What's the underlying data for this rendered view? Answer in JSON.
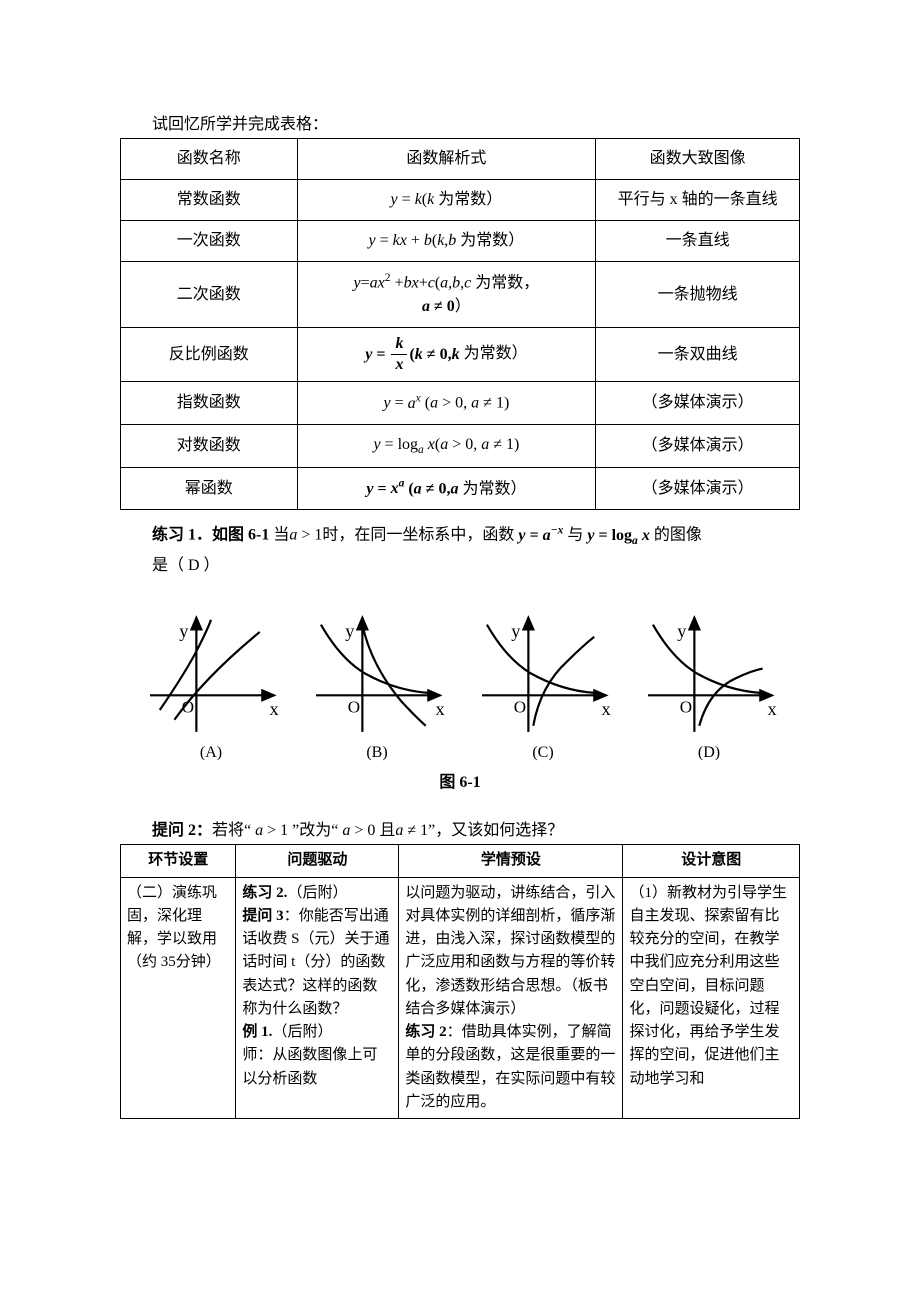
{
  "intro": "试回忆所学并完成表格：",
  "table1": {
    "headers": [
      "函数名称",
      "函数解析式",
      "函数大致图像"
    ],
    "rows": [
      {
        "name": "常数函数",
        "expr_html": "<span class='ital'>y</span> = <span class='ital'>k</span>(<span class='ital'>k</span> 为常数）",
        "img": "平行与 x 轴的一条直线"
      },
      {
        "name": "一次函数",
        "expr_html": "<span class='ital'>y</span> = <span class='ital'>kx</span> + <span class='ital'>b</span>(<span class='ital'>k</span>,<span class='ital'>b</span> 为常数）",
        "img": "一条直线"
      },
      {
        "name": "二次函数",
        "expr_html": "<span class='ital'>y</span>=<span class='ital'>ax</span><sup>2</sup> +<span class='ital'>bx</span>+<span class='ital'>c</span>(<span class='ital'>a</span>,<span class='ital'>b</span>,<span class='ital'>c</span> 为常数，<br><span class='bold'><span class='ital'>a</span> ≠ 0</span>）",
        "img": "一条抛物线"
      },
      {
        "name": "反比例函数",
        "expr_html": "<span class='bold'><span class='ital'>y</span> = <span class='frac'><span class='num'>k</span><span class='den'>x</span></span>(<span class='ital'>k</span> ≠ 0,<span class='ital'>k</span></span> 为常数）",
        "img": "一条双曲线"
      },
      {
        "name": "指数函数",
        "expr_html": "<span class='ital'>y</span> = <span class='ital'>a<sup>x</sup></span> (<span class='ital'>a</span> &gt; 0, <span class='ital'>a</span> ≠ 1)",
        "img": "（多媒体演示）"
      },
      {
        "name": "对数函数",
        "expr_html": "<span class='ital'>y</span> = log<sub><span class='ital'>a</span></sub> <span class='ital'>x</span>(<span class='ital'>a</span> &gt; 0, <span class='ital'>a</span> ≠ 1)",
        "img": "（多媒体演示）"
      },
      {
        "name": "幂函数",
        "expr_html": "<span class='bold'><span class='ital'>y</span> = <span class='ital'>x<sup>a</sup></span> (<span class='ital'>a</span> ≠ 0,<span class='ital'>a</span></span> 为常数）",
        "img": "（多媒体演示）"
      }
    ]
  },
  "ex1": {
    "label": "练习 1．如图 6-1",
    "text_html": "当<span class='ital'>a</span> &gt; 1时，在同一坐标系中，函数 <span class='bold ital'>y = a<sup>−x</sup></span> 与 <span class='bold'><span class='ital'>y</span> = log<sub><span class='ital'>a</span></sub> <span class='ital'>x</span></span> 的图像",
    "answer": "是（ D  ）"
  },
  "graphs": {
    "labels": [
      "(A)",
      "(B)",
      "(C)",
      "(D)"
    ],
    "axis_labels": {
      "x": "x",
      "y": "y",
      "origin": "O"
    },
    "title": "图 6-1",
    "stroke": "#000000",
    "stroke_width": 1.8,
    "curves": {
      "A": [
        "M 18 82 Q 40 50 50 30 Q 58 14 60 8",
        "M 30 90 Q 55 55 100 18"
      ],
      "B": [
        "M 14 12 Q 30 40 50 52 Q 75 66 102 68",
        "M 48 12 Q 55 45 80 75 Q 92 88 100 95"
      ],
      "C": [
        "M 14 12 Q 30 40 50 52 Q 75 66 102 68",
        "M 52 95 Q 58 62 80 42 Q 92 30 102 22"
      ],
      "D": [
        "M 14 12 Q 30 40 50 52 Q 75 66 102 68",
        "M 52 95 Q 60 66 82 56 Q 94 50 104 48"
      ]
    }
  },
  "q2_html": "<span class='bold'>提问 2：</span>若将“ <span class='ital'>a</span> &gt; 1 ”改为“ <span class='ital'>a</span> &gt; 0 且<span class='ital'>a</span> ≠ 1”，又该如何选择？",
  "table2": {
    "headers": [
      "环节设置",
      "问题驱动",
      "学情预设",
      "设计意图"
    ],
    "row": {
      "c1": "（二）演练巩固，深化理解，学以致用（约 35分钟）",
      "c2_html": "<span class='bold'>练习 2.</span>（后附）<br><span class='bold'>提问 3</span>：你能否写出通话收费 S（元）关于通话时间 t（分）的函数表达式？这样的函数称为什么函数？<br><span class='bold'>例 1.</span>（后附）<br>师：从函数图像上可以分析函数",
      "c3_html": "以问题为驱动，讲练结合，引入对具体实例的详细剖析，循序渐进，由浅入深，探讨函数模型的广泛应用和函数与方程的等价转化，渗透数形结合思想。（板书结合多媒体演示）<br><span class='bold'>练习 2</span>：借助具体实例，了解简单的分段函数，这是很重要的一类函数模型，在实际问题中有较广泛的应用。",
      "c4": "（1）新教材为引导学生自主发现、探索留有比较充分的空间，在教学中我们应充分利用这些空白空间，目标问题化，问题设疑化，过程探讨化，再给予学生发挥的空间，促进他们主动地学习和"
    }
  }
}
